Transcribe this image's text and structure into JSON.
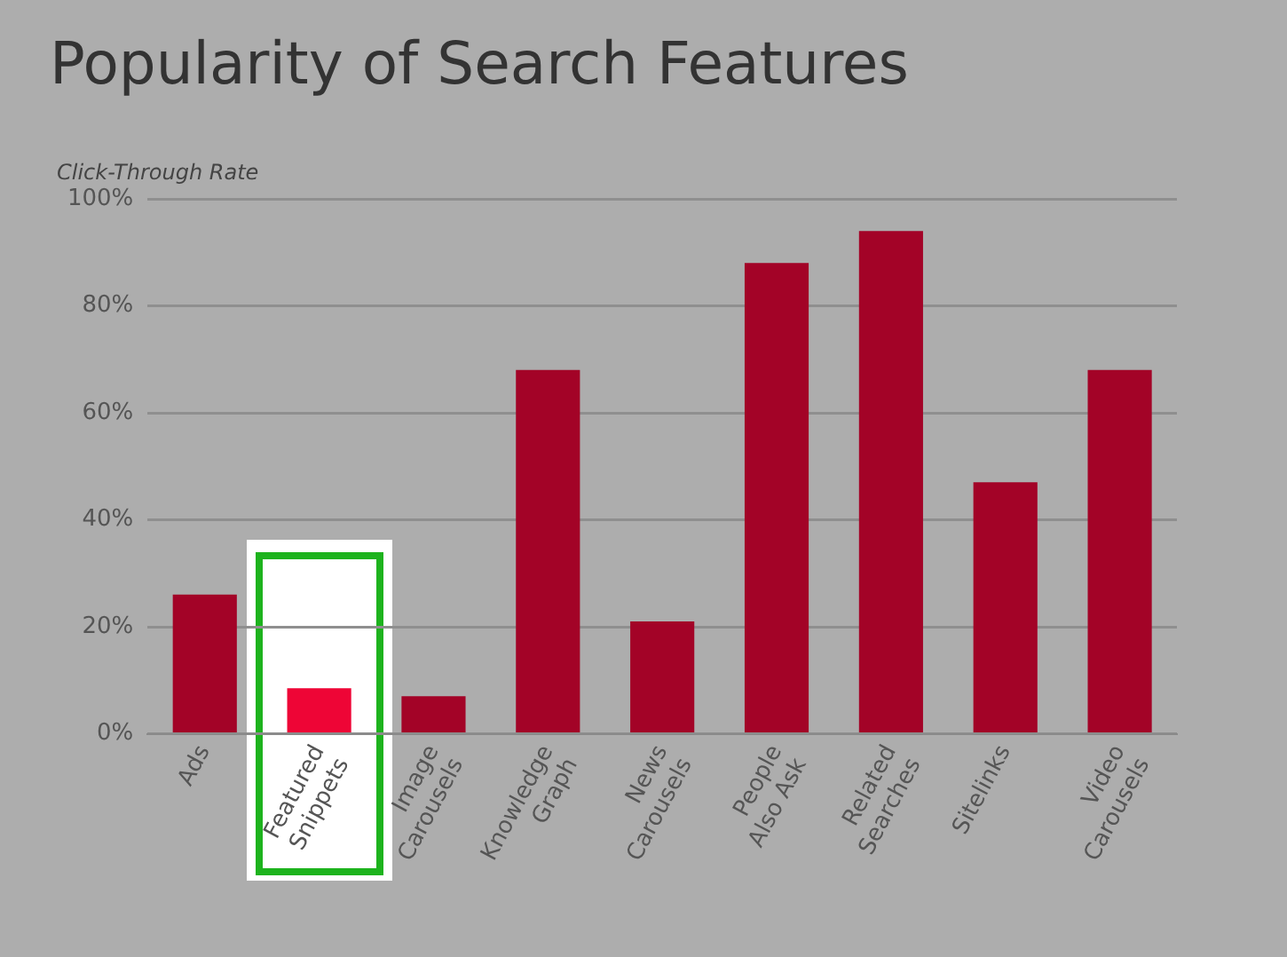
{
  "chart_data": {
    "type": "bar",
    "title": "Popularity of Search Features",
    "ylabel": "Click-Through Rate",
    "categories": [
      "Ads",
      "Featured Snippets",
      "Image Carousels",
      "Knowledge Graph",
      "News Carousels",
      "People Also Ask",
      "Related Searches",
      "Sitelinks",
      "Video Carousels"
    ],
    "values": [
      26,
      8.5,
      7,
      68,
      21,
      88,
      94,
      47,
      68
    ],
    "colors": [
      "#a30327",
      "#ee0536",
      "#a30327",
      "#a30327",
      "#a30327",
      "#a30327",
      "#a30327",
      "#a30327",
      "#a30327"
    ],
    "ylim": [
      0,
      100
    ],
    "yticks": [
      {
        "value": 0,
        "label": "0%"
      },
      {
        "value": 20,
        "label": "20%"
      },
      {
        "value": 40,
        "label": "40%"
      },
      {
        "value": 60,
        "label": "60%"
      },
      {
        "value": 80,
        "label": "80%"
      },
      {
        "value": 100,
        "label": "100%"
      }
    ],
    "grid": "y"
  }
}
